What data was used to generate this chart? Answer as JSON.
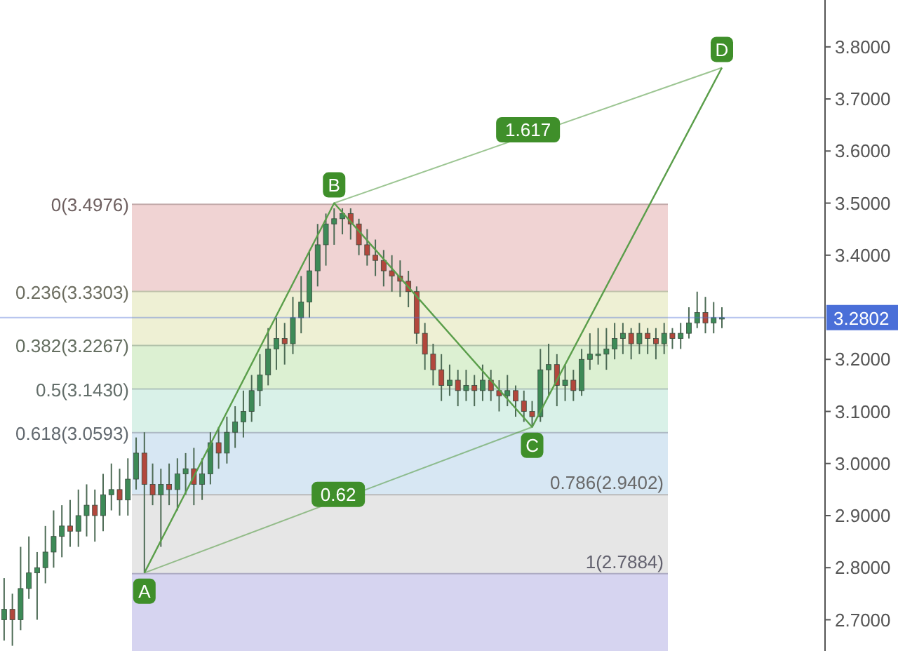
{
  "chart_data": {
    "type": "candlestick",
    "tick_labels": "y",
    "categories": [
      null,
      null,
      null,
      null,
      null,
      null,
      null,
      null,
      null,
      null,
      null,
      null,
      null,
      null,
      null,
      null,
      null,
      null,
      null,
      null,
      null,
      null,
      null,
      null,
      null,
      null,
      null,
      null,
      null,
      null,
      null,
      null,
      null,
      null,
      null,
      null,
      null,
      null,
      null,
      null,
      null,
      null,
      null,
      null,
      null,
      null,
      null,
      null,
      null,
      null,
      null,
      null,
      null,
      null,
      null,
      null,
      null,
      null,
      null,
      null,
      null,
      null,
      null,
      null,
      null,
      null,
      null,
      null,
      null,
      null,
      null,
      null,
      null,
      null,
      null,
      null,
      null,
      null,
      null,
      null,
      null,
      null,
      null,
      null,
      null,
      null,
      null,
      null,
      null,
      null,
      null,
      null,
      null,
      null,
      null,
      null,
      null,
      null,
      null,
      null
    ],
    "ohlc": [
      [
        2.7,
        2.78,
        2.66,
        2.72
      ],
      [
        2.72,
        2.75,
        2.65,
        2.7
      ],
      [
        2.7,
        2.84,
        2.68,
        2.76
      ],
      [
        2.76,
        2.86,
        2.74,
        2.79
      ],
      [
        2.79,
        2.83,
        2.7,
        2.8
      ],
      [
        2.8,
        2.88,
        2.77,
        2.83
      ],
      [
        2.83,
        2.91,
        2.8,
        2.86
      ],
      [
        2.86,
        2.92,
        2.82,
        2.88
      ],
      [
        2.88,
        2.93,
        2.84,
        2.87
      ],
      [
        2.87,
        2.95,
        2.84,
        2.9
      ],
      [
        2.9,
        2.96,
        2.86,
        2.92
      ],
      [
        2.92,
        2.95,
        2.85,
        2.9
      ],
      [
        2.9,
        2.98,
        2.87,
        2.94
      ],
      [
        2.94,
        3.0,
        2.91,
        2.95
      ],
      [
        2.95,
        2.99,
        2.9,
        2.93
      ],
      [
        2.93,
        3.01,
        2.9,
        2.97
      ],
      [
        2.97,
        3.05,
        2.95,
        3.02
      ],
      [
        3.02,
        3.06,
        2.79,
        2.96
      ],
      [
        2.96,
        3.0,
        2.92,
        2.94
      ],
      [
        2.94,
        2.99,
        2.84,
        2.96
      ],
      [
        2.96,
        3.0,
        2.92,
        2.95
      ],
      [
        2.95,
        3.01,
        2.91,
        2.98
      ],
      [
        2.98,
        3.02,
        2.94,
        2.99
      ],
      [
        2.99,
        3.03,
        2.92,
        2.96
      ],
      [
        2.96,
        3.01,
        2.93,
        2.98
      ],
      [
        2.98,
        3.06,
        2.96,
        3.04
      ],
      [
        3.04,
        3.07,
        2.99,
        3.02
      ],
      [
        3.02,
        3.09,
        3.0,
        3.06
      ],
      [
        3.06,
        3.11,
        3.03,
        3.08
      ],
      [
        3.08,
        3.14,
        3.05,
        3.1
      ],
      [
        3.1,
        3.17,
        3.08,
        3.14
      ],
      [
        3.14,
        3.21,
        3.11,
        3.17
      ],
      [
        3.17,
        3.26,
        3.15,
        3.22
      ],
      [
        3.22,
        3.28,
        3.18,
        3.24
      ],
      [
        3.24,
        3.27,
        3.19,
        3.23
      ],
      [
        3.23,
        3.32,
        3.21,
        3.28
      ],
      [
        3.28,
        3.36,
        3.25,
        3.31
      ],
      [
        3.31,
        3.41,
        3.28,
        3.37
      ],
      [
        3.37,
        3.46,
        3.34,
        3.42
      ],
      [
        3.42,
        3.48,
        3.38,
        3.46
      ],
      [
        3.46,
        3.49,
        3.42,
        3.47
      ],
      [
        3.47,
        3.49,
        3.44,
        3.48
      ],
      [
        3.48,
        3.49,
        3.43,
        3.46
      ],
      [
        3.46,
        3.47,
        3.4,
        3.42
      ],
      [
        3.42,
        3.45,
        3.38,
        3.4
      ],
      [
        3.4,
        3.43,
        3.36,
        3.39
      ],
      [
        3.39,
        3.41,
        3.34,
        3.37
      ],
      [
        3.37,
        3.4,
        3.33,
        3.36
      ],
      [
        3.36,
        3.39,
        3.32,
        3.35
      ],
      [
        3.35,
        3.37,
        3.3,
        3.33
      ],
      [
        3.33,
        3.34,
        3.23,
        3.25
      ],
      [
        3.25,
        3.27,
        3.18,
        3.21
      ],
      [
        3.21,
        3.23,
        3.15,
        3.18
      ],
      [
        3.18,
        3.21,
        3.12,
        3.15
      ],
      [
        3.15,
        3.19,
        3.13,
        3.16
      ],
      [
        3.16,
        3.18,
        3.11,
        3.14
      ],
      [
        3.14,
        3.18,
        3.12,
        3.15
      ],
      [
        3.15,
        3.17,
        3.11,
        3.14
      ],
      [
        3.14,
        3.19,
        3.12,
        3.16
      ],
      [
        3.16,
        3.18,
        3.12,
        3.14
      ],
      [
        3.14,
        3.16,
        3.1,
        3.13
      ],
      [
        3.13,
        3.17,
        3.11,
        3.14
      ],
      [
        3.14,
        3.15,
        3.09,
        3.12
      ],
      [
        3.12,
        3.14,
        3.08,
        3.1
      ],
      [
        3.1,
        3.12,
        3.07,
        3.09
      ],
      [
        3.09,
        3.22,
        3.08,
        3.18
      ],
      [
        3.18,
        3.23,
        3.13,
        3.19
      ],
      [
        3.19,
        3.21,
        3.11,
        3.15
      ],
      [
        3.15,
        3.19,
        3.12,
        3.16
      ],
      [
        3.16,
        3.18,
        3.12,
        3.14
      ],
      [
        3.14,
        3.22,
        3.13,
        3.2
      ],
      [
        3.2,
        3.25,
        3.18,
        3.21
      ],
      [
        3.21,
        3.26,
        3.19,
        3.21
      ],
      [
        3.21,
        3.26,
        3.18,
        3.22
      ],
      [
        3.22,
        3.27,
        3.2,
        3.24
      ],
      [
        3.24,
        3.27,
        3.21,
        3.25
      ],
      [
        3.25,
        3.26,
        3.2,
        3.23
      ],
      [
        3.23,
        3.27,
        3.21,
        3.25
      ],
      [
        3.25,
        3.26,
        3.21,
        3.24
      ],
      [
        3.24,
        3.26,
        3.2,
        3.23
      ],
      [
        3.23,
        3.27,
        3.21,
        3.25
      ],
      [
        3.25,
        3.26,
        3.22,
        3.24
      ],
      [
        3.24,
        3.27,
        3.22,
        3.25
      ],
      [
        3.25,
        3.3,
        3.24,
        3.27
      ],
      [
        3.27,
        3.33,
        3.26,
        3.29
      ],
      [
        3.29,
        3.32,
        3.25,
        3.27
      ],
      [
        3.27,
        3.31,
        3.25,
        3.28
      ],
      [
        3.28,
        3.3,
        3.26,
        3.28
      ],
      null,
      null,
      null,
      null,
      null,
      null,
      null,
      null,
      null,
      null,
      null,
      null
    ],
    "series": [
      {
        "type": "line",
        "color": "#5a9e4a",
        "values": [
          null,
          null,
          null,
          null,
          null,
          null,
          null,
          null,
          null,
          null,
          null,
          null,
          null,
          null,
          null,
          null,
          null,
          2.79,
          null,
          null,
          null,
          null,
          null,
          null,
          null,
          null,
          null,
          null,
          null,
          null,
          null,
          null,
          null,
          null,
          null,
          null,
          null,
          null,
          null,
          null,
          3.5,
          null,
          null,
          null,
          null,
          null,
          null,
          null,
          null,
          null,
          null,
          null,
          null,
          null,
          null,
          null,
          null,
          null,
          null,
          null,
          null,
          null,
          null,
          null,
          3.07,
          null,
          null,
          null,
          null,
          null,
          null,
          null,
          null,
          null,
          null,
          null,
          null,
          null,
          null,
          null,
          null,
          null,
          null,
          null,
          null,
          null,
          null,
          3.76,
          null,
          null,
          null,
          null,
          null,
          null,
          null,
          null,
          null,
          null,
          null,
          null
        ]
      }
    ],
    "annotations": [
      "A",
      "B",
      "C",
      "D",
      "0.62",
      "1.617"
    ],
    "bands": [
      {
        "axis": "y",
        "from": 3.4976,
        "to": 3.3303,
        "label": "0(3.4976)",
        "color": "#f0d3d3"
      },
      {
        "axis": "y",
        "from": 3.3303,
        "to": 3.2267,
        "label": "0.236(3.3303)",
        "color": "#eef0d4"
      },
      {
        "axis": "y",
        "from": 3.2267,
        "to": 3.143,
        "label": "0.382(3.2267)",
        "color": "#dcf0d2"
      },
      {
        "axis": "y",
        "from": 3.143,
        "to": 3.0593,
        "label": "0.5(3.1430)",
        "color": "#d9f1e8"
      },
      {
        "axis": "y",
        "from": 3.0593,
        "to": 2.9402,
        "label": "0.618(3.0593)",
        "color": "#d7e7f3"
      },
      {
        "axis": "y",
        "from": 2.9402,
        "to": 2.7884,
        "label": "0.786(2.9402)",
        "color": "#e6e6e6"
      },
      {
        "axis": "y",
        "from": 2.7884,
        "to": 2.64,
        "label": "1(2.7884)",
        "color": "#d6d4f0"
      }
    ],
    "ref_lines": [
      {
        "axis": "y",
        "value": 3.2802,
        "label": "3.2802",
        "color": "#4a6fd8"
      }
    ],
    "ylim": [
      2.64,
      3.89
    ],
    "yticks": [
      {
        "value": 2.7,
        "label": "2.7000"
      },
      {
        "value": 2.8,
        "label": "2.8000"
      },
      {
        "value": 2.9,
        "label": "2.9000"
      },
      {
        "value": 3.0,
        "label": "3.0000"
      },
      {
        "value": 3.1,
        "label": "3.1000"
      },
      {
        "value": 3.2,
        "label": "3.2000"
      },
      {
        "value": 3.4,
        "label": "3.4000"
      },
      {
        "value": 3.5,
        "label": "3.5000"
      },
      {
        "value": 3.6,
        "label": "3.6000"
      },
      {
        "value": 3.7,
        "label": "3.7000"
      },
      {
        "value": 3.8,
        "label": "3.8000"
      }
    ]
  }
}
